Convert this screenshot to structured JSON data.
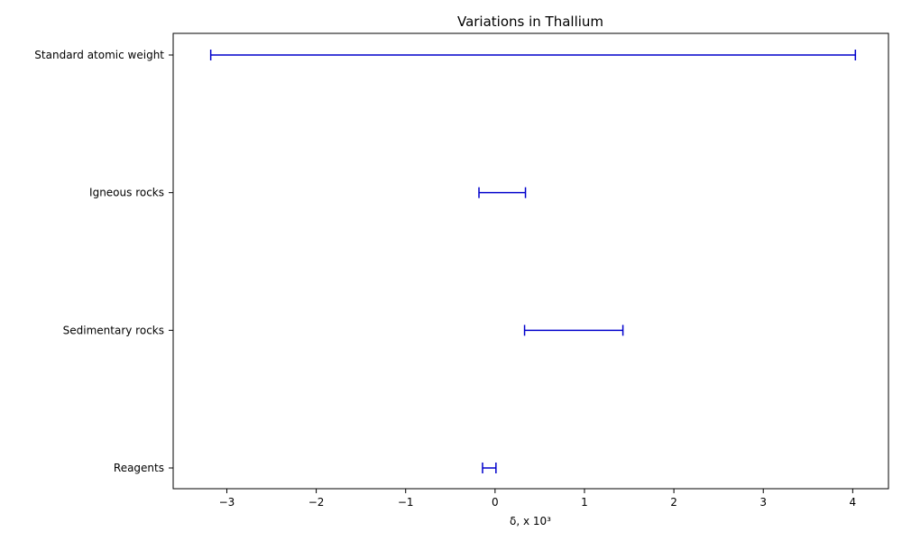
{
  "chart_data": {
    "type": "range",
    "title": "Variations  in Thallium",
    "xlabel": "δ, x 10³",
    "ylabel": "",
    "xlim": [
      -3.6,
      4.4
    ],
    "xticks": [
      -3,
      -2,
      -1,
      0,
      1,
      2,
      3,
      4
    ],
    "xtick_labels": [
      "−3",
      "−2",
      "−1",
      "0",
      "1",
      "2",
      "3",
      "4"
    ],
    "grid": false,
    "series_color": "#0000cc",
    "categories": [
      "Standard atomic weight",
      "Igneous rocks",
      "Sedimentary rocks",
      "Reagents"
    ],
    "ranges": [
      {
        "category": "Standard atomic weight",
        "low": -3.18,
        "high": 4.03
      },
      {
        "category": "Igneous rocks",
        "low": -0.18,
        "high": 0.34
      },
      {
        "category": "Sedimentary rocks",
        "low": 0.33,
        "high": 1.43
      },
      {
        "category": "Reagents",
        "low": -0.14,
        "high": 0.01
      }
    ]
  }
}
